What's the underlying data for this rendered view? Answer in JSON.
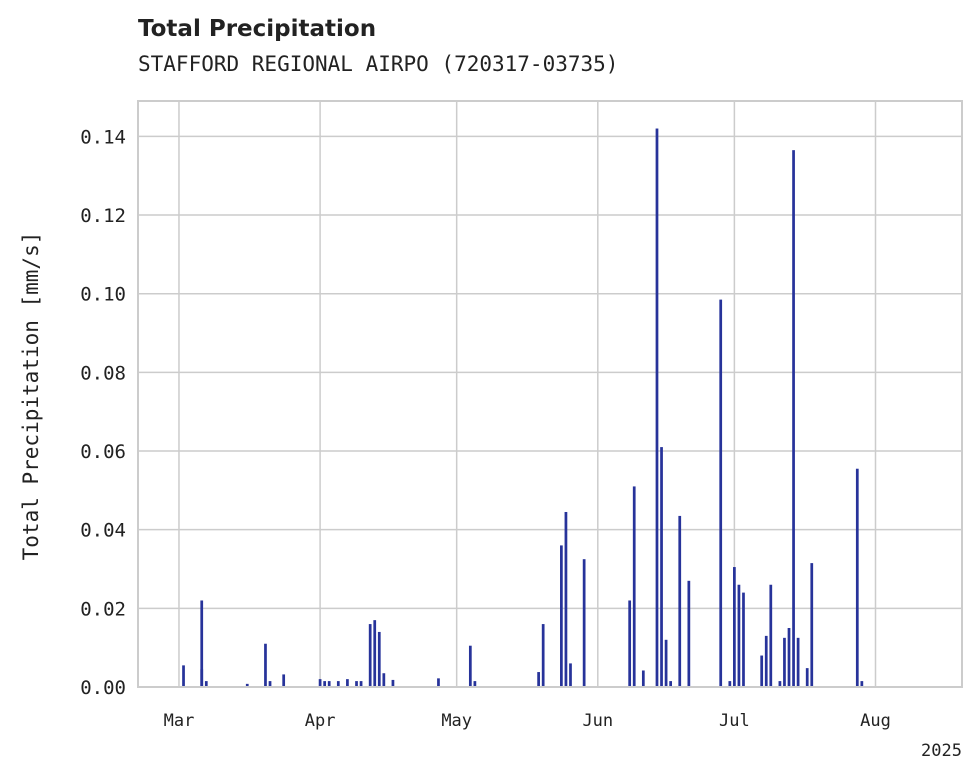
{
  "chart_data": {
    "type": "bar",
    "title": "Total Precipitation",
    "subtitle": "STAFFORD REGIONAL AIRPO (720317-03735)",
    "ylabel": "Total Precipitation [mm/s]",
    "xlabel": "",
    "year_label": "2025",
    "ylim": [
      0,
      0.149
    ],
    "xlim": [
      "2025-02-20",
      "2025-08-20"
    ],
    "yticks": [
      0,
      0.02,
      0.04,
      0.06,
      0.08,
      0.1,
      0.12,
      0.14
    ],
    "ytick_labels": [
      "0.00",
      "0.02",
      "0.04",
      "0.06",
      "0.08",
      "0.10",
      "0.12",
      "0.14"
    ],
    "xticks": [
      {
        "date": "2025-03-01",
        "label": "Mar"
      },
      {
        "date": "2025-04-01",
        "label": "Apr"
      },
      {
        "date": "2025-05-01",
        "label": "May"
      },
      {
        "date": "2025-06-01",
        "label": "Jun"
      },
      {
        "date": "2025-07-01",
        "label": "Jul"
      },
      {
        "date": "2025-08-01",
        "label": "Aug"
      }
    ],
    "grid": true,
    "color": "#27339a",
    "series": [
      {
        "x": [
          "2025-03-02",
          "2025-03-06",
          "2025-03-06",
          "2025-03-07",
          "2025-03-16",
          "2025-03-20",
          "2025-03-21",
          "2025-03-24",
          "2025-04-01",
          "2025-04-02",
          "2025-04-03",
          "2025-04-05",
          "2025-04-07",
          "2025-04-09",
          "2025-04-10",
          "2025-04-12",
          "2025-04-13",
          "2025-04-14",
          "2025-04-15",
          "2025-04-17",
          "2025-04-27",
          "2025-05-04",
          "2025-05-05",
          "2025-05-19",
          "2025-05-20",
          "2025-05-24",
          "2025-05-25",
          "2025-05-26",
          "2025-05-29",
          "2025-06-08",
          "2025-06-09",
          "2025-06-11",
          "2025-06-14",
          "2025-06-15",
          "2025-06-16",
          "2025-06-17",
          "2025-06-19",
          "2025-06-21",
          "2025-06-28",
          "2025-06-30",
          "2025-07-01",
          "2025-07-02",
          "2025-07-03",
          "2025-07-07",
          "2025-07-08",
          "2025-07-09",
          "2025-07-11",
          "2025-07-12",
          "2025-07-13",
          "2025-07-14",
          "2025-07-15",
          "2025-07-17",
          "2025-07-18",
          "2025-07-28",
          "2025-07-29"
        ],
        "y": [
          0.0055,
          0.022,
          0.0045,
          0.0015,
          0.0008,
          0.011,
          0.0015,
          0.0032,
          0.002,
          0.0015,
          0.0015,
          0.0015,
          0.002,
          0.0015,
          0.0015,
          0.016,
          0.017,
          0.014,
          0.0035,
          0.0018,
          0.0022,
          0.0105,
          0.0015,
          0.0038,
          0.016,
          0.036,
          0.0445,
          0.006,
          0.0325,
          0.022,
          0.051,
          0.0042,
          0.142,
          0.061,
          0.012,
          0.0015,
          0.0435,
          0.027,
          0.0985,
          0.0015,
          0.0305,
          0.026,
          0.024,
          0.008,
          0.013,
          0.026,
          0.0015,
          0.0125,
          0.015,
          0.1365,
          0.0125,
          0.0048,
          0.0315,
          0.0555,
          0.0015
        ]
      }
    ]
  }
}
